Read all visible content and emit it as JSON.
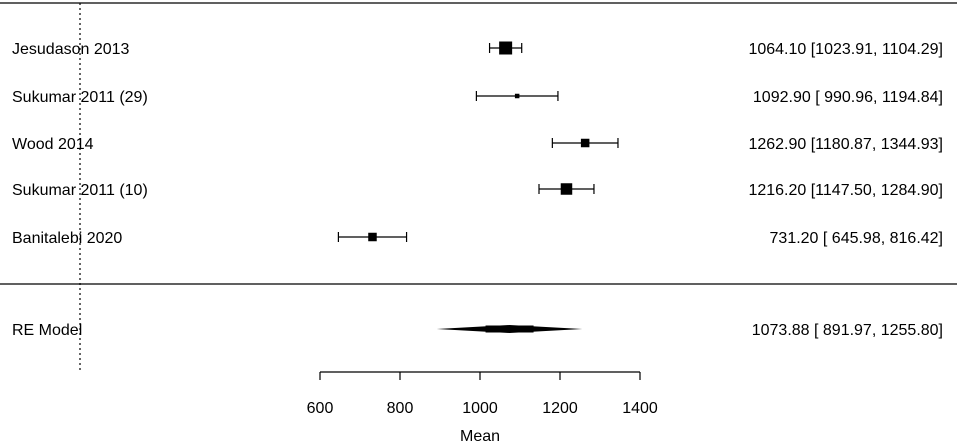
{
  "chart_data": {
    "type": "forest",
    "xlabel": "Mean",
    "xticks": [
      600,
      800,
      1000,
      1200,
      1400
    ],
    "xlim": [
      600,
      1400
    ],
    "reference_line": 0,
    "studies": [
      {
        "label": "Jesudason 2013",
        "mean": 1064.1,
        "lower": 1023.91,
        "upper": 1104.29,
        "ci_text": "1064.10 [1023.91, 1104.29]",
        "weight": 1.0
      },
      {
        "label": "Sukumar 2011 (29)",
        "mean": 1092.9,
        "lower": 990.96,
        "upper": 1194.84,
        "ci_text": "1092.90 [ 990.96, 1194.84]",
        "weight": 0.15
      },
      {
        "label": "Wood 2014",
        "mean": 1262.9,
        "lower": 1180.87,
        "upper": 1344.93,
        "ci_text": "1262.90 [1180.87, 1344.93]",
        "weight": 0.55
      },
      {
        "label": "Sukumar 2011 (10)",
        "mean": 1216.2,
        "lower": 1147.5,
        "upper": 1284.9,
        "ci_text": "1216.20 [1147.50, 1284.90]",
        "weight": 0.85
      },
      {
        "label": "Banitalebi 2020",
        "mean": 731.2,
        "lower": 645.98,
        "upper": 816.42,
        "ci_text": "731.20 [ 645.98,  816.42]",
        "weight": 0.55
      }
    ],
    "summary": {
      "label": "RE Model",
      "mean": 1073.88,
      "lower": 891.97,
      "upper": 1255.8,
      "ci_text": "1073.88 [ 891.97, 1255.80]"
    }
  }
}
